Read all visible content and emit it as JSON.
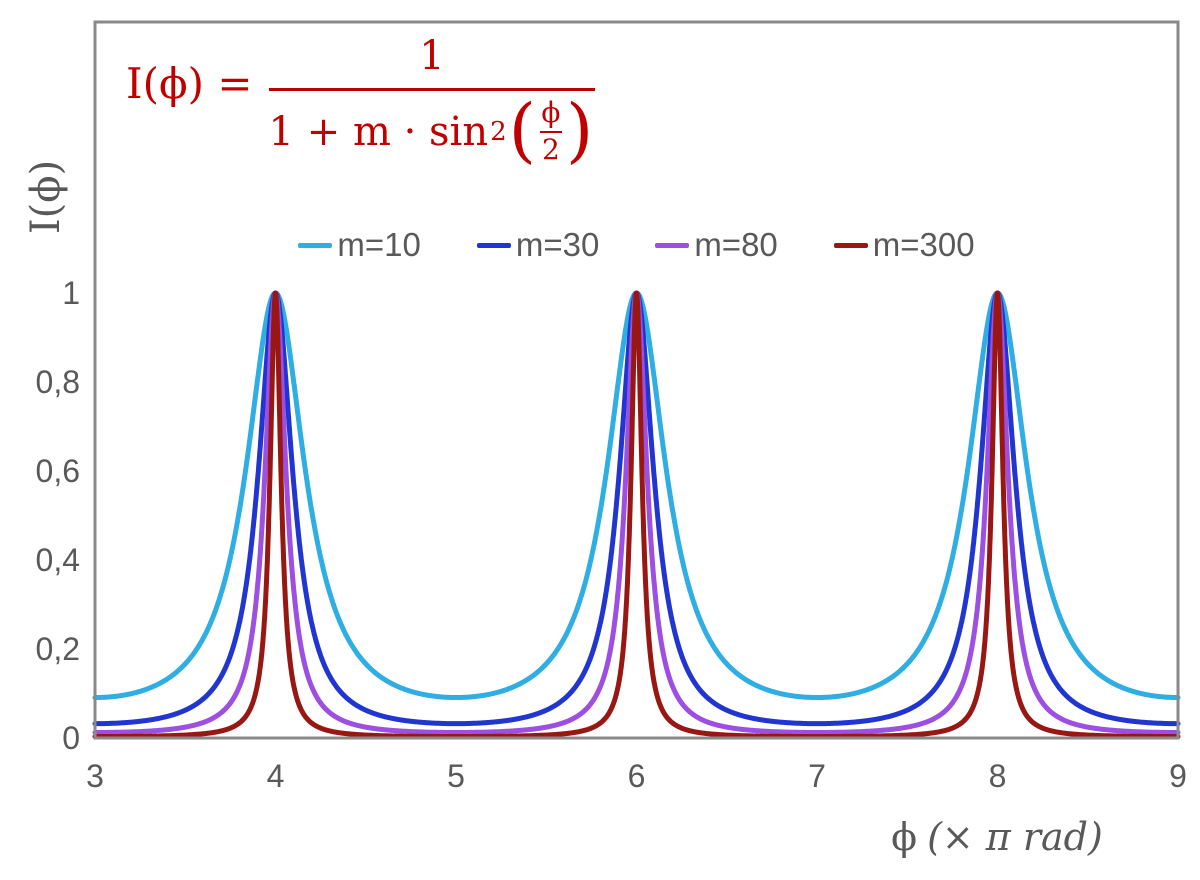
{
  "colors": {
    "formula_red": "#C00000",
    "frame_gray": "#8A8A8A",
    "text_gray": "#595959",
    "background": "#FFFFFF"
  },
  "formula": {
    "lhs": "I(ϕ) =",
    "numerator": "1",
    "den_prefix": "1 + m · sin",
    "den_sup": "2",
    "paren_open": "(",
    "inner_num": "ϕ",
    "inner_den": "2",
    "paren_close": ")"
  },
  "axes": {
    "y_title": "I(ϕ)",
    "x_title_symbol": "ϕ",
    "x_title_unit": "(× π rad)"
  },
  "chart_data": {
    "type": "line",
    "title": "",
    "function": "I(phi) = 1 / (1 + m · sin²(phi/2))",
    "xlabel": "ϕ (× π rad)",
    "ylabel": "I(ϕ)",
    "x_unit": "π rad",
    "x_range": [
      3,
      9
    ],
    "y_range_shown": [
      0,
      1.6
    ],
    "grid": false,
    "legend_position": "top-center",
    "x_ticks": [
      {
        "value": 3,
        "label": "3"
      },
      {
        "value": 4,
        "label": "4"
      },
      {
        "value": 5,
        "label": "5"
      },
      {
        "value": 6,
        "label": "6"
      },
      {
        "value": 7,
        "label": "7"
      },
      {
        "value": 8,
        "label": "8"
      },
      {
        "value": 9,
        "label": "9"
      }
    ],
    "y_ticks": [
      {
        "value": 1,
        "label": "1"
      },
      {
        "value": 0.8,
        "label": "0,8"
      },
      {
        "value": 0.6,
        "label": "0,6"
      },
      {
        "value": 0.4,
        "label": "0,4"
      },
      {
        "value": 0.2,
        "label": "0,2"
      },
      {
        "value": 0,
        "label": "0"
      }
    ],
    "series": [
      {
        "name": "m=10",
        "m": 10,
        "color": "#2FAEE3",
        "peaks_x": [
          4,
          6,
          8
        ],
        "peak_y": 1,
        "min_y": 0.091
      },
      {
        "name": "m=30",
        "m": 30,
        "color": "#2136D0",
        "peaks_x": [
          4,
          6,
          8
        ],
        "peak_y": 1,
        "min_y": 0.032
      },
      {
        "name": "m=80",
        "m": 80,
        "color": "#9C4FE0",
        "peaks_x": [
          4,
          6,
          8
        ],
        "peak_y": 1,
        "min_y": 0.012
      },
      {
        "name": "m=300",
        "m": 300,
        "color": "#981712",
        "peaks_x": [
          4,
          6,
          8
        ],
        "peak_y": 1,
        "min_y": 0.003
      }
    ]
  }
}
